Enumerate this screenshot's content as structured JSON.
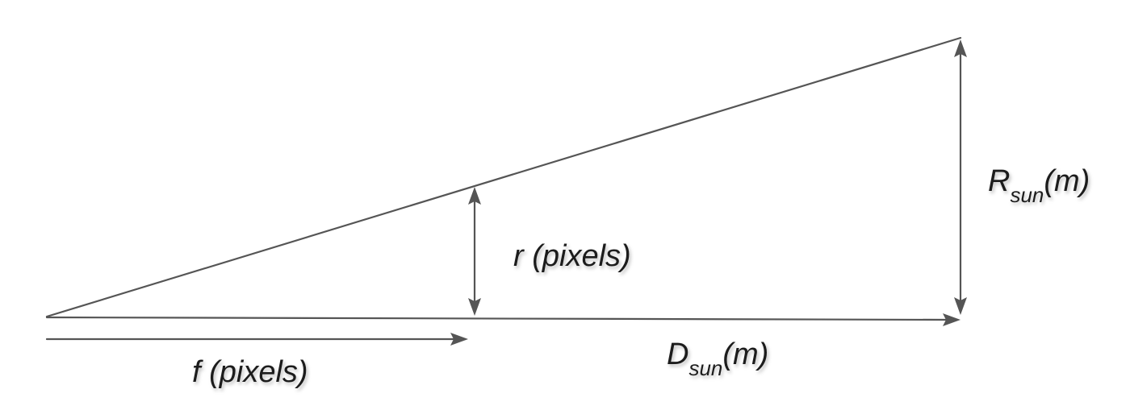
{
  "labels": {
    "r": "r (pixels)",
    "f": "f (pixels)",
    "R_main": "R",
    "R_sub": "sun",
    "R_unit": "(m)",
    "D_main": "D",
    "D_sub": "sun",
    "D_unit": "(m)"
  },
  "colors": {
    "line": "#555555",
    "text": "#1f1f1f"
  }
}
